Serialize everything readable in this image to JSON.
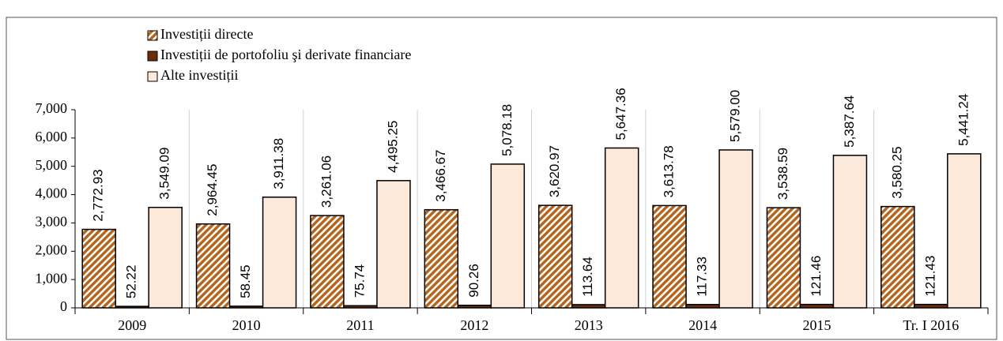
{
  "chart_data": {
    "type": "bar",
    "categories": [
      "2009",
      "2010",
      "2011",
      "2012",
      "2013",
      "2014",
      "2015",
      "Tr. I 2016"
    ],
    "series": [
      {
        "name": "Investiții directe",
        "color": "#b5651d",
        "hatch": true,
        "values": [
          2772.93,
          2964.45,
          3261.06,
          3466.67,
          3620.97,
          3613.78,
          3538.59,
          3580.25
        ],
        "value_labels": [
          "2,772.93",
          "2,964.45",
          "3,261.06",
          "3,466.67",
          "3,620.97",
          "3,613.78",
          "3,538.59",
          "3,580.25"
        ]
      },
      {
        "name": "Investiții de portofoliu şi derivate financiare",
        "color": "#6b2d0c",
        "values": [
          52.22,
          58.45,
          75.74,
          90.26,
          113.64,
          117.33,
          121.46,
          121.43
        ],
        "value_labels": [
          "52.22",
          "58.45",
          "75.74",
          "90.26",
          "113.64",
          "117.33",
          "121.46",
          "121.43"
        ]
      },
      {
        "name": "Alte investiții",
        "color": "#fde9d9",
        "values": [
          3549.09,
          3911.38,
          4495.25,
          5078.18,
          5647.36,
          5579.0,
          5387.64,
          5441.24
        ],
        "value_labels": [
          "3,549.09",
          "3,911.38",
          "4,495.25",
          "5,078.18",
          "5,647.36",
          "5,579.00",
          "5,387.64",
          "5,441.24"
        ]
      }
    ],
    "ylim": [
      0,
      7000
    ],
    "yticks": [
      0,
      {
        "value": 1000,
        "label": "1,000"
      },
      {
        "value": 2000,
        "label": "2,000"
      },
      {
        "value": 3000,
        "label": "3,000"
      },
      {
        "value": 4000,
        "label": "4,000"
      },
      {
        "value": 5000,
        "label": "5,000"
      },
      {
        "value": 6000,
        "label": "6,000"
      },
      {
        "value": 7000,
        "label": "7,000"
      }
    ],
    "legend": "top-left"
  }
}
